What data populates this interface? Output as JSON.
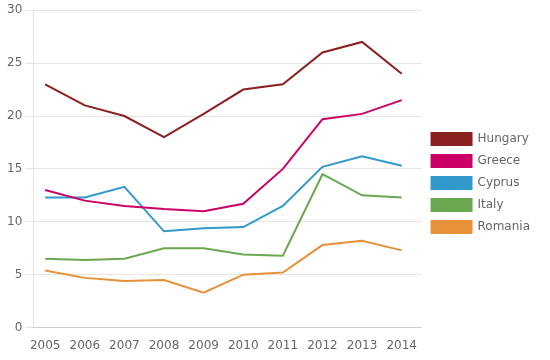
{
  "chart_data": {
    "type": "line",
    "x": [
      2005,
      2006,
      2007,
      2008,
      2009,
      2010,
      2011,
      2012,
      2013,
      2014
    ],
    "series": [
      {
        "name": "Hungary",
        "color": "#8B2020",
        "values": [
          23.0,
          21.0,
          20.0,
          18.0,
          20.2,
          22.5,
          23.0,
          26.0,
          27.0,
          24.0
        ]
      },
      {
        "name": "Greece",
        "color": "#CC0066",
        "values": [
          13.0,
          12.0,
          11.5,
          11.2,
          11.0,
          11.7,
          15.0,
          19.7,
          20.2,
          21.5
        ]
      },
      {
        "name": "Cyprus",
        "color": "#3399CC",
        "values": [
          12.3,
          12.3,
          13.3,
          9.1,
          9.4,
          9.5,
          11.5,
          15.2,
          16.2,
          15.3
        ]
      },
      {
        "name": "Italy",
        "color": "#6AA84F",
        "values": [
          6.5,
          6.4,
          6.5,
          7.5,
          7.5,
          6.9,
          6.8,
          14.5,
          12.5,
          12.3
        ]
      },
      {
        "name": "Romania",
        "color": "#E69138",
        "values": [
          5.4,
          4.7,
          4.4,
          4.5,
          3.3,
          5.0,
          5.2,
          7.8,
          8.2,
          7.3
        ]
      }
    ],
    "xlim": [
      2004.7,
      2014.5
    ],
    "xticks": [
      2005,
      2006,
      2007,
      2008,
      2009,
      2010,
      2011,
      2012,
      2013,
      2014
    ],
    "ylim": [
      0,
      30
    ],
    "yticks": [
      0,
      5,
      10,
      15,
      20,
      25,
      30
    ],
    "grid": "y",
    "legend": "right"
  }
}
